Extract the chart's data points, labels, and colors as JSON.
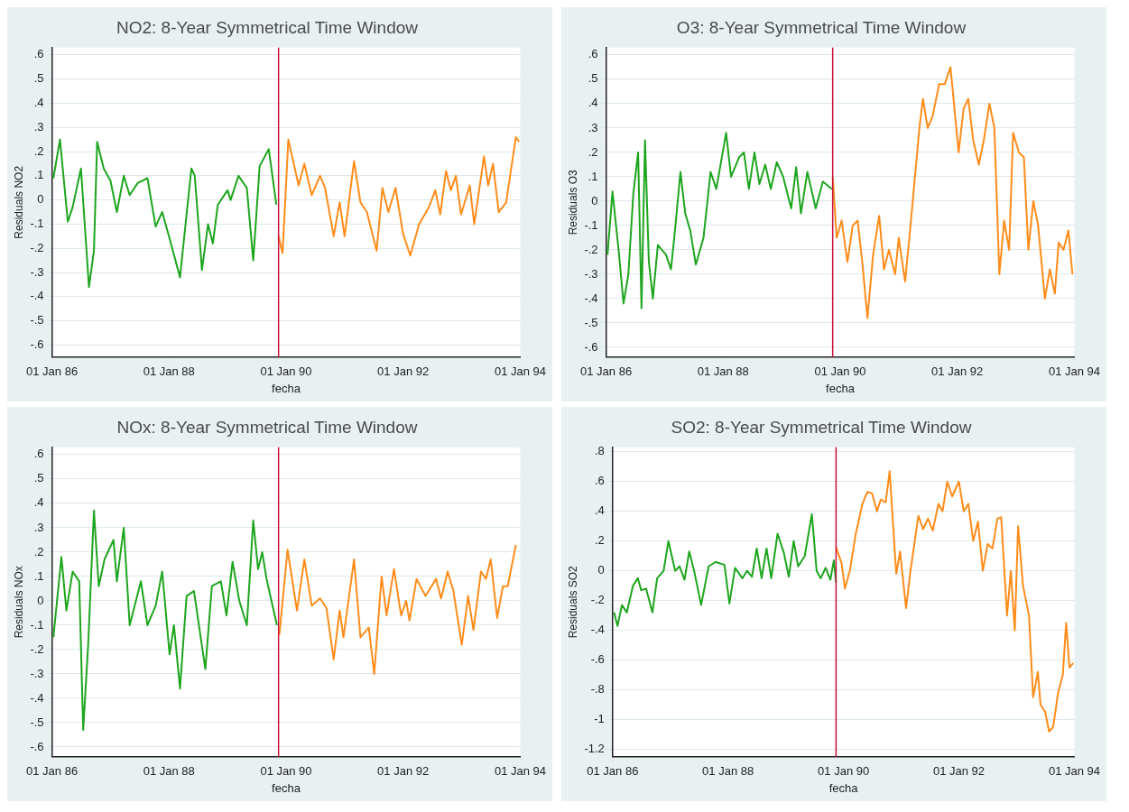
{
  "chart_data": [
    {
      "type": "line",
      "title": "NO2: 8-Year Symmetrical Time Window",
      "xlabel": "fecha",
      "ylabel": "Residuals NO2",
      "xlim": [
        "1986-01-01",
        "1994-01-01"
      ],
      "xticks": [
        {
          "value": "1986-01-01",
          "label": "01 Jan 86"
        },
        {
          "value": "1988-01-01",
          "label": "01 Jan 88"
        },
        {
          "value": "1990-01-01",
          "label": "01 Jan 90"
        },
        {
          "value": "1992-01-01",
          "label": "01 Jan 92"
        },
        {
          "value": "1994-01-01",
          "label": "01 Jan 94"
        }
      ],
      "ylim": [
        -0.65,
        0.63
      ],
      "yticks": [
        {
          "value": 0.6,
          "label": ".6"
        },
        {
          "value": 0.5,
          "label": ".5"
        },
        {
          "value": 0.4,
          "label": ".4"
        },
        {
          "value": 0.3,
          "label": ".3"
        },
        {
          "value": 0.2,
          "label": ".2"
        },
        {
          "value": 0.1,
          "label": ".1"
        },
        {
          "value": 0,
          "label": "0"
        },
        {
          "value": -0.1,
          "label": "-.1"
        },
        {
          "value": -0.2,
          "label": "-.2"
        },
        {
          "value": -0.3,
          "label": "-.3"
        },
        {
          "value": -0.4,
          "label": "-.4"
        },
        {
          "value": -0.5,
          "label": "-.5"
        },
        {
          "value": -0.6,
          "label": "-.6"
        }
      ],
      "grid": "y",
      "legend": false,
      "marker": "none",
      "line_style": "solid",
      "ref_lines": [
        {
          "axis": "x",
          "value": "1989-11-15",
          "color": "#c8103c"
        }
      ],
      "series": [
        {
          "color": "#1ea51e",
          "x": [
            "1986-01-10",
            "1986-02-20",
            "1986-04-10",
            "1986-05-10",
            "1986-07-01",
            "1986-08-20",
            "1986-09-20",
            "1986-10-10",
            "1986-11-20",
            "1987-01-01",
            "1987-02-10",
            "1987-03-25",
            "1987-05-01",
            "1987-06-20",
            "1987-08-20",
            "1987-10-10",
            "1987-11-20",
            "1988-01-01",
            "1988-03-10",
            "1988-05-20",
            "1988-06-10",
            "1988-07-25",
            "1988-09-01",
            "1988-10-01",
            "1988-11-01",
            "1989-01-01",
            "1989-01-20",
            "1989-03-10",
            "1989-05-01",
            "1989-06-10",
            "1989-07-20",
            "1989-09-15",
            "1989-11-01"
          ],
          "values": [
            0.09,
            0.25,
            -0.09,
            -0.03,
            0.13,
            -0.36,
            -0.21,
            0.24,
            0.13,
            0.08,
            -0.05,
            0.1,
            0.02,
            0.07,
            0.09,
            -0.11,
            -0.05,
            -0.15,
            -0.32,
            0.13,
            0.1,
            -0.29,
            -0.1,
            -0.18,
            -0.02,
            0.04,
            0,
            0.1,
            0.05,
            -0.25,
            0.14,
            0.21,
            -0.02
          ]
        },
        {
          "color": "#ff8c1a",
          "x": [
            "1989-11-15",
            "1989-12-10",
            "1990-01-15",
            "1990-03-20",
            "1990-04-25",
            "1990-06-10",
            "1990-08-01",
            "1990-09-01",
            "1990-10-25",
            "1990-12-01",
            "1991-01-01",
            "1991-03-01",
            "1991-04-10",
            "1991-05-20",
            "1991-07-20",
            "1991-08-25",
            "1991-10-01",
            "1991-11-15",
            "1992-01-01",
            "1992-02-15",
            "1992-04-10",
            "1992-06-10",
            "1992-07-20",
            "1992-08-20",
            "1992-09-25",
            "1992-10-25",
            "1992-11-25",
            "1992-12-28",
            "1993-02-20",
            "1993-03-20",
            "1993-05-20",
            "1993-06-15",
            "1993-07-15",
            "1993-08-20",
            "1993-10-05",
            "1993-12-05",
            "1993-12-25"
          ],
          "values": [
            -0.15,
            -0.22,
            0.25,
            0.06,
            0.15,
            0.02,
            0.1,
            0.05,
            -0.15,
            -0.01,
            -0.15,
            0.16,
            -0.01,
            -0.05,
            -0.21,
            0.05,
            -0.05,
            0.05,
            -0.14,
            -0.23,
            -0.1,
            -0.03,
            0.04,
            -0.06,
            0.12,
            0.04,
            0.1,
            -0.06,
            0.06,
            -0.1,
            0.18,
            0.06,
            0.15,
            -0.05,
            -0.01,
            0.26,
            0.24
          ]
        }
      ]
    },
    {
      "type": "line",
      "title": "O3: 8-Year Symmetrical Time Window",
      "xlabel": "fecha",
      "ylabel": "Residuals O3",
      "xlim": [
        "1986-01-01",
        "1994-01-01"
      ],
      "xticks": [
        {
          "value": "1986-01-01",
          "label": "01 Jan 86"
        },
        {
          "value": "1988-01-01",
          "label": "01 Jan 88"
        },
        {
          "value": "1990-01-01",
          "label": "01 Jan 90"
        },
        {
          "value": "1992-01-01",
          "label": "01 Jan 92"
        },
        {
          "value": "1994-01-01",
          "label": "01 Jan 94"
        }
      ],
      "ylim": [
        -0.64,
        0.63
      ],
      "yticks": [
        {
          "value": 0.6,
          "label": ".6"
        },
        {
          "value": 0.5,
          "label": ".5"
        },
        {
          "value": 0.4,
          "label": ".4"
        },
        {
          "value": 0.3,
          "label": ".3"
        },
        {
          "value": 0.2,
          "label": ".2"
        },
        {
          "value": 0.1,
          "label": ".1"
        },
        {
          "value": 0,
          "label": "0"
        },
        {
          "value": -0.1,
          "label": "-.1"
        },
        {
          "value": -0.2,
          "label": "-.2"
        },
        {
          "value": -0.3,
          "label": "-.3"
        },
        {
          "value": -0.4,
          "label": "-.4"
        },
        {
          "value": -0.5,
          "label": "-.5"
        },
        {
          "value": -0.6,
          "label": "-.6"
        }
      ],
      "grid": "y",
      "legend": false,
      "marker": "none",
      "line_style": "solid",
      "ref_lines": [
        {
          "axis": "x",
          "value": "1989-11-15",
          "color": "#c8103c"
        }
      ],
      "series": [
        {
          "color": "#1ea51e",
          "x": [
            "1986-01-10",
            "1986-02-10",
            "1986-03-20",
            "1986-04-20",
            "1986-05-20",
            "1986-06-20",
            "1986-07-20",
            "1986-08-10",
            "1986-09-01",
            "1986-09-25",
            "1986-10-20",
            "1986-11-20",
            "1987-01-10",
            "1987-02-10",
            "1987-03-10",
            "1987-04-10",
            "1987-05-10",
            "1987-06-10",
            "1987-07-15",
            "1987-09-01",
            "1987-10-15",
            "1987-11-20",
            "1988-01-20",
            "1988-02-20",
            "1988-04-10",
            "1988-05-10",
            "1988-06-10",
            "1988-07-15",
            "1988-08-15",
            "1988-09-20",
            "1988-10-25",
            "1988-12-01",
            "1989-01-10",
            "1989-03-01",
            "1989-04-01",
            "1989-05-01",
            "1989-06-10",
            "1989-08-01",
            "1989-09-15",
            "1989-11-10"
          ],
          "values": [
            -0.22,
            0.04,
            -0.2,
            -0.42,
            -0.3,
            0.03,
            0.2,
            -0.44,
            0.25,
            -0.25,
            -0.4,
            -0.18,
            -0.22,
            -0.28,
            -0.1,
            0.12,
            -0.05,
            -0.12,
            -0.26,
            -0.15,
            0.12,
            0.05,
            0.28,
            0.1,
            0.18,
            0.2,
            0.05,
            0.2,
            0.07,
            0.15,
            0.05,
            0.16,
            0.1,
            -0.03,
            0.14,
            -0.05,
            0.12,
            -0.03,
            0.08,
            0.05
          ]
        },
        {
          "color": "#ff8c1a",
          "x": [
            "1989-11-15",
            "1989-12-10",
            "1990-01-10",
            "1990-02-15",
            "1990-03-20",
            "1990-04-20",
            "1990-05-20",
            "1990-06-20",
            "1990-07-25",
            "1990-09-01",
            "1990-10-01",
            "1990-11-01",
            "1990-12-10",
            "1991-01-01",
            "1991-02-10",
            "1991-03-20",
            "1991-05-10",
            "1991-06-01",
            "1991-07-01",
            "1991-08-01",
            "1991-09-10",
            "1991-10-15",
            "1991-11-20",
            "1992-01-10",
            "1992-02-10",
            "1992-03-10",
            "1992-04-10",
            "1992-05-15",
            "1992-06-15",
            "1992-07-20",
            "1992-08-20",
            "1992-09-20",
            "1992-10-20",
            "1992-11-20",
            "1992-12-15",
            "1993-01-20",
            "1993-02-20",
            "1993-03-20",
            "1993-04-20",
            "1993-05-20",
            "1993-07-01",
            "1993-08-01",
            "1993-09-01",
            "1993-09-25",
            "1993-10-25",
            "1993-11-25",
            "1993-12-20"
          ],
          "values": [
            0.1,
            -0.15,
            -0.08,
            -0.25,
            -0.1,
            -0.08,
            -0.26,
            -0.48,
            -0.22,
            -0.06,
            -0.28,
            -0.2,
            -0.3,
            -0.15,
            -0.33,
            -0.07,
            0.3,
            0.42,
            0.3,
            0.35,
            0.48,
            0.48,
            0.55,
            0.2,
            0.38,
            0.42,
            0.25,
            0.15,
            0.25,
            0.4,
            0.3,
            -0.3,
            -0.08,
            -0.2,
            0.28,
            0.2,
            0.18,
            -0.2,
            0,
            -0.1,
            -0.4,
            -0.28,
            -0.38,
            -0.17,
            -0.2,
            -0.12,
            -0.3
          ]
        }
      ]
    },
    {
      "type": "line",
      "title": "NOx: 8-Year Symmetrical Time Window",
      "xlabel": "fecha",
      "ylabel": "Residuals NOx",
      "xlim": [
        "1986-01-01",
        "1994-01-01"
      ],
      "xticks": [
        {
          "value": "1986-01-01",
          "label": "01 Jan 86"
        },
        {
          "value": "1988-01-01",
          "label": "01 Jan 88"
        },
        {
          "value": "1990-01-01",
          "label": "01 Jan 90"
        },
        {
          "value": "1992-01-01",
          "label": "01 Jan 92"
        },
        {
          "value": "1994-01-01",
          "label": "01 Jan 94"
        }
      ],
      "ylim": [
        -0.64,
        0.63
      ],
      "yticks": [
        {
          "value": 0.6,
          "label": ".6"
        },
        {
          "value": 0.5,
          "label": ".5"
        },
        {
          "value": 0.4,
          "label": ".4"
        },
        {
          "value": 0.3,
          "label": ".3"
        },
        {
          "value": 0.2,
          "label": ".2"
        },
        {
          "value": 0.1,
          "label": ".1"
        },
        {
          "value": 0,
          "label": "0"
        },
        {
          "value": -0.1,
          "label": "-.1"
        },
        {
          "value": -0.2,
          "label": "-.2"
        },
        {
          "value": -0.3,
          "label": "-.3"
        },
        {
          "value": -0.4,
          "label": "-.4"
        },
        {
          "value": -0.5,
          "label": "-.5"
        },
        {
          "value": -0.6,
          "label": "-.6"
        }
      ],
      "grid": "y",
      "legend": false,
      "marker": "none",
      "line_style": "solid",
      "ref_lines": [
        {
          "axis": "x",
          "value": "1989-11-15",
          "color": "#c8103c"
        }
      ],
      "series": [
        {
          "color": "#1ea51e",
          "x": [
            "1986-01-10",
            "1986-03-01",
            "1986-04-01",
            "1986-05-10",
            "1986-06-20",
            "1986-07-15",
            "1986-08-15",
            "1986-09-20",
            "1986-10-20",
            "1986-11-25",
            "1987-01-20",
            "1987-02-10",
            "1987-03-25",
            "1987-05-01",
            "1987-07-10",
            "1987-08-20",
            "1987-10-10",
            "1987-11-20",
            "1988-01-05",
            "1988-02-01",
            "1988-03-10",
            "1988-04-20",
            "1988-06-05",
            "1988-08-15",
            "1988-09-25",
            "1988-11-20",
            "1988-12-25",
            "1989-02-01",
            "1989-03-15",
            "1989-05-01",
            "1989-06-10",
            "1989-07-10",
            "1989-08-05",
            "1989-09-01",
            "1989-11-05"
          ],
          "values": [
            -0.15,
            0.18,
            -0.04,
            0.12,
            0.08,
            -0.53,
            -0.18,
            0.37,
            0.06,
            0.17,
            0.25,
            0.08,
            0.3,
            -0.1,
            0.08,
            -0.1,
            -0.02,
            0.12,
            -0.22,
            -0.1,
            -0.36,
            0.02,
            0.04,
            -0.28,
            0.06,
            0.08,
            -0.06,
            0.16,
            0,
            -0.1,
            0.33,
            0.13,
            0.2,
            0.09,
            -0.1
          ]
        },
        {
          "color": "#ff8c1a",
          "x": [
            "1989-11-20",
            "1990-01-10",
            "1990-03-10",
            "1990-04-25",
            "1990-06-10",
            "1990-08-01",
            "1990-09-10",
            "1990-10-25",
            "1990-12-01",
            "1990-12-25",
            "1991-03-01",
            "1991-04-10",
            "1991-06-01",
            "1991-07-05",
            "1991-08-20",
            "1991-09-20",
            "1991-11-05",
            "1991-12-20",
            "1992-01-20",
            "1992-02-10",
            "1992-03-25",
            "1992-05-20",
            "1992-07-25",
            "1992-08-25",
            "1992-10-05",
            "1992-11-10",
            "1993-01-01",
            "1993-02-10",
            "1993-03-15",
            "1993-05-01",
            "1993-06-01",
            "1993-07-01",
            "1993-08-10",
            "1993-09-15",
            "1993-10-15",
            "1993-12-05"
          ],
          "values": [
            -0.14,
            0.21,
            -0.04,
            0.17,
            -0.02,
            0.01,
            -0.03,
            -0.24,
            -0.04,
            -0.15,
            0.17,
            -0.15,
            -0.11,
            -0.3,
            0.1,
            -0.06,
            0.13,
            -0.06,
            0,
            -0.08,
            0.09,
            0.02,
            0.09,
            0.01,
            0.12,
            0.04,
            -0.18,
            0.02,
            -0.12,
            0.12,
            0.09,
            0.17,
            -0.07,
            0.06,
            0.06,
            0.23
          ]
        }
      ]
    },
    {
      "type": "line",
      "title": "SO2: 8-Year Symmetrical Time Window",
      "xlabel": "fecha",
      "ylabel": "Residuals SO2",
      "xlim": [
        "1986-01-01",
        "1994-01-01"
      ],
      "xticks": [
        {
          "value": "1986-01-01",
          "label": "01 Jan 86"
        },
        {
          "value": "1988-01-01",
          "label": "01 Jan 88"
        },
        {
          "value": "1990-01-01",
          "label": "01 Jan 90"
        },
        {
          "value": "1992-01-01",
          "label": "01 Jan 92"
        },
        {
          "value": "1994-01-01",
          "label": "01 Jan 94"
        }
      ],
      "ylim": [
        -1.25,
        0.83
      ],
      "yticks": [
        {
          "value": 0.8,
          "label": ".8"
        },
        {
          "value": 0.6,
          "label": ".6"
        },
        {
          "value": 0.4,
          "label": ".4"
        },
        {
          "value": 0.2,
          "label": ".2"
        },
        {
          "value": 0,
          "label": "0"
        },
        {
          "value": -0.2,
          "label": "-.2"
        },
        {
          "value": -0.4,
          "label": "-.4"
        },
        {
          "value": -0.6,
          "label": "-.6"
        },
        {
          "value": -0.8,
          "label": "-.8"
        },
        {
          "value": -1,
          "label": "-1"
        },
        {
          "value": -1.2,
          "label": "-1.2"
        }
      ],
      "grid": "y",
      "legend": false,
      "marker": "none",
      "line_style": "solid",
      "ref_lines": [
        {
          "axis": "x",
          "value": "1989-11-15",
          "color": "#c8103c"
        }
      ],
      "series": [
        {
          "color": "#1ea51e",
          "x": [
            "1986-01-10",
            "1986-02-01",
            "1986-03-01",
            "1986-04-01",
            "1986-05-10",
            "1986-06-10",
            "1986-07-01",
            "1986-08-01",
            "1986-09-10",
            "1986-10-10",
            "1986-11-20",
            "1986-12-20",
            "1987-02-01",
            "1987-03-01",
            "1987-04-01",
            "1987-05-01",
            "1987-06-01",
            "1987-07-15",
            "1987-09-01",
            "1987-10-15",
            "1987-12-10",
            "1988-01-10",
            "1988-02-15",
            "1988-04-01",
            "1988-05-01",
            "1988-06-01",
            "1988-07-01",
            "1988-08-01",
            "1988-09-01",
            "1988-10-01",
            "1988-11-10",
            "1988-12-20",
            "1989-01-20",
            "1989-02-20",
            "1989-03-20",
            "1989-05-01",
            "1989-06-15",
            "1989-07-15",
            "1989-08-10",
            "1989-09-10",
            "1989-10-10",
            "1989-11-01",
            "1989-11-15"
          ],
          "values": [
            -0.28,
            -0.37,
            -0.23,
            -0.28,
            -0.1,
            -0.05,
            -0.13,
            -0.12,
            -0.28,
            -0.05,
            0,
            0.2,
            0,
            0.03,
            -0.06,
            0.13,
            0,
            -0.23,
            0.03,
            0.06,
            0.04,
            -0.22,
            0.02,
            -0.05,
            0,
            -0.04,
            0.15,
            -0.05,
            0.15,
            -0.05,
            0.25,
            0.12,
            -0.04,
            0.2,
            0.03,
            0.1,
            0.38,
            0,
            -0.05,
            0.02,
            -0.06,
            0.07,
            -0.08
          ]
        },
        {
          "color": "#ff8c1a",
          "x": [
            "1989-11-15",
            "1989-12-20",
            "1990-01-10",
            "1990-02-10",
            "1990-03-20",
            "1990-05-01",
            "1990-06-01",
            "1990-07-01",
            "1990-08-01",
            "1990-08-25",
            "1990-09-25",
            "1990-10-20",
            "1990-12-01",
            "1990-12-25",
            "1991-02-01",
            "1991-03-01",
            "1991-04-20",
            "1991-05-20",
            "1991-06-20",
            "1991-07-20",
            "1991-08-25",
            "1991-09-20",
            "1991-10-20",
            "1991-11-20",
            "1992-01-01",
            "1992-02-01",
            "1992-03-01",
            "1992-04-01",
            "1992-05-01",
            "1992-06-01",
            "1992-07-01",
            "1992-08-01",
            "1992-09-01",
            "1992-09-25",
            "1992-11-01",
            "1992-11-25",
            "1992-12-20",
            "1993-01-10",
            "1993-02-10",
            "1993-03-20",
            "1993-04-15",
            "1993-05-15",
            "1993-06-01",
            "1993-07-01",
            "1993-07-25",
            "1993-08-20",
            "1993-09-20",
            "1993-10-20",
            "1993-11-10",
            "1993-12-01",
            "1993-12-25"
          ],
          "values": [
            0.16,
            0.05,
            -0.12,
            0,
            0.25,
            0.45,
            0.53,
            0.52,
            0.4,
            0.48,
            0.46,
            0.67,
            -0.02,
            0.13,
            -0.25,
            0,
            0.37,
            0.28,
            0.35,
            0.27,
            0.45,
            0.4,
            0.6,
            0.5,
            0.6,
            0.4,
            0.45,
            0.2,
            0.33,
            0,
            0.18,
            0.15,
            0.35,
            0.36,
            -0.3,
            0,
            -0.4,
            0.3,
            -0.1,
            -0.3,
            -0.85,
            -0.68,
            -0.9,
            -0.95,
            -1.08,
            -1.05,
            -0.82,
            -0.7,
            -0.35,
            -0.65,
            -0.62
          ]
        }
      ]
    }
  ]
}
